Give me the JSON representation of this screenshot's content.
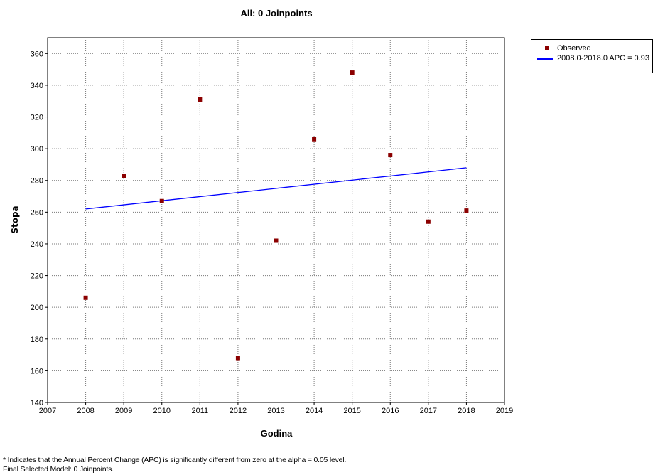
{
  "chart_data": {
    "type": "scatter",
    "title": "All: 0 Joinpoints",
    "xlabel": "Godina",
    "ylabel": "Stopa",
    "xlim": [
      2007,
      2019
    ],
    "ylim": [
      140,
      370
    ],
    "x_ticks": [
      2007,
      2008,
      2009,
      2010,
      2011,
      2012,
      2013,
      2014,
      2015,
      2016,
      2017,
      2018,
      2019
    ],
    "y_ticks": [
      140,
      160,
      180,
      200,
      220,
      240,
      260,
      280,
      300,
      320,
      340,
      360
    ],
    "grid": true,
    "legend_position": "top-right outside",
    "series": [
      {
        "name": "Observed",
        "kind": "points",
        "color": "#8b0000",
        "x": [
          2008,
          2009,
          2010,
          2011,
          2012,
          2013,
          2014,
          2015,
          2016,
          2017,
          2018
        ],
        "y": [
          206,
          283,
          267,
          331,
          168,
          242,
          306,
          348,
          296,
          254,
          261
        ]
      },
      {
        "name": "2008.0-2018.0 APC  = 0.93",
        "kind": "line",
        "color": "#0000ff",
        "x": [
          2008,
          2018
        ],
        "y": [
          262,
          288
        ]
      }
    ]
  },
  "footnotes": {
    "line1": "* Indicates that the Annual Percent Change (APC) is significantly different from zero at the alpha = 0.05 level.",
    "line2": "Final Selected Model: 0 Joinpoints."
  }
}
